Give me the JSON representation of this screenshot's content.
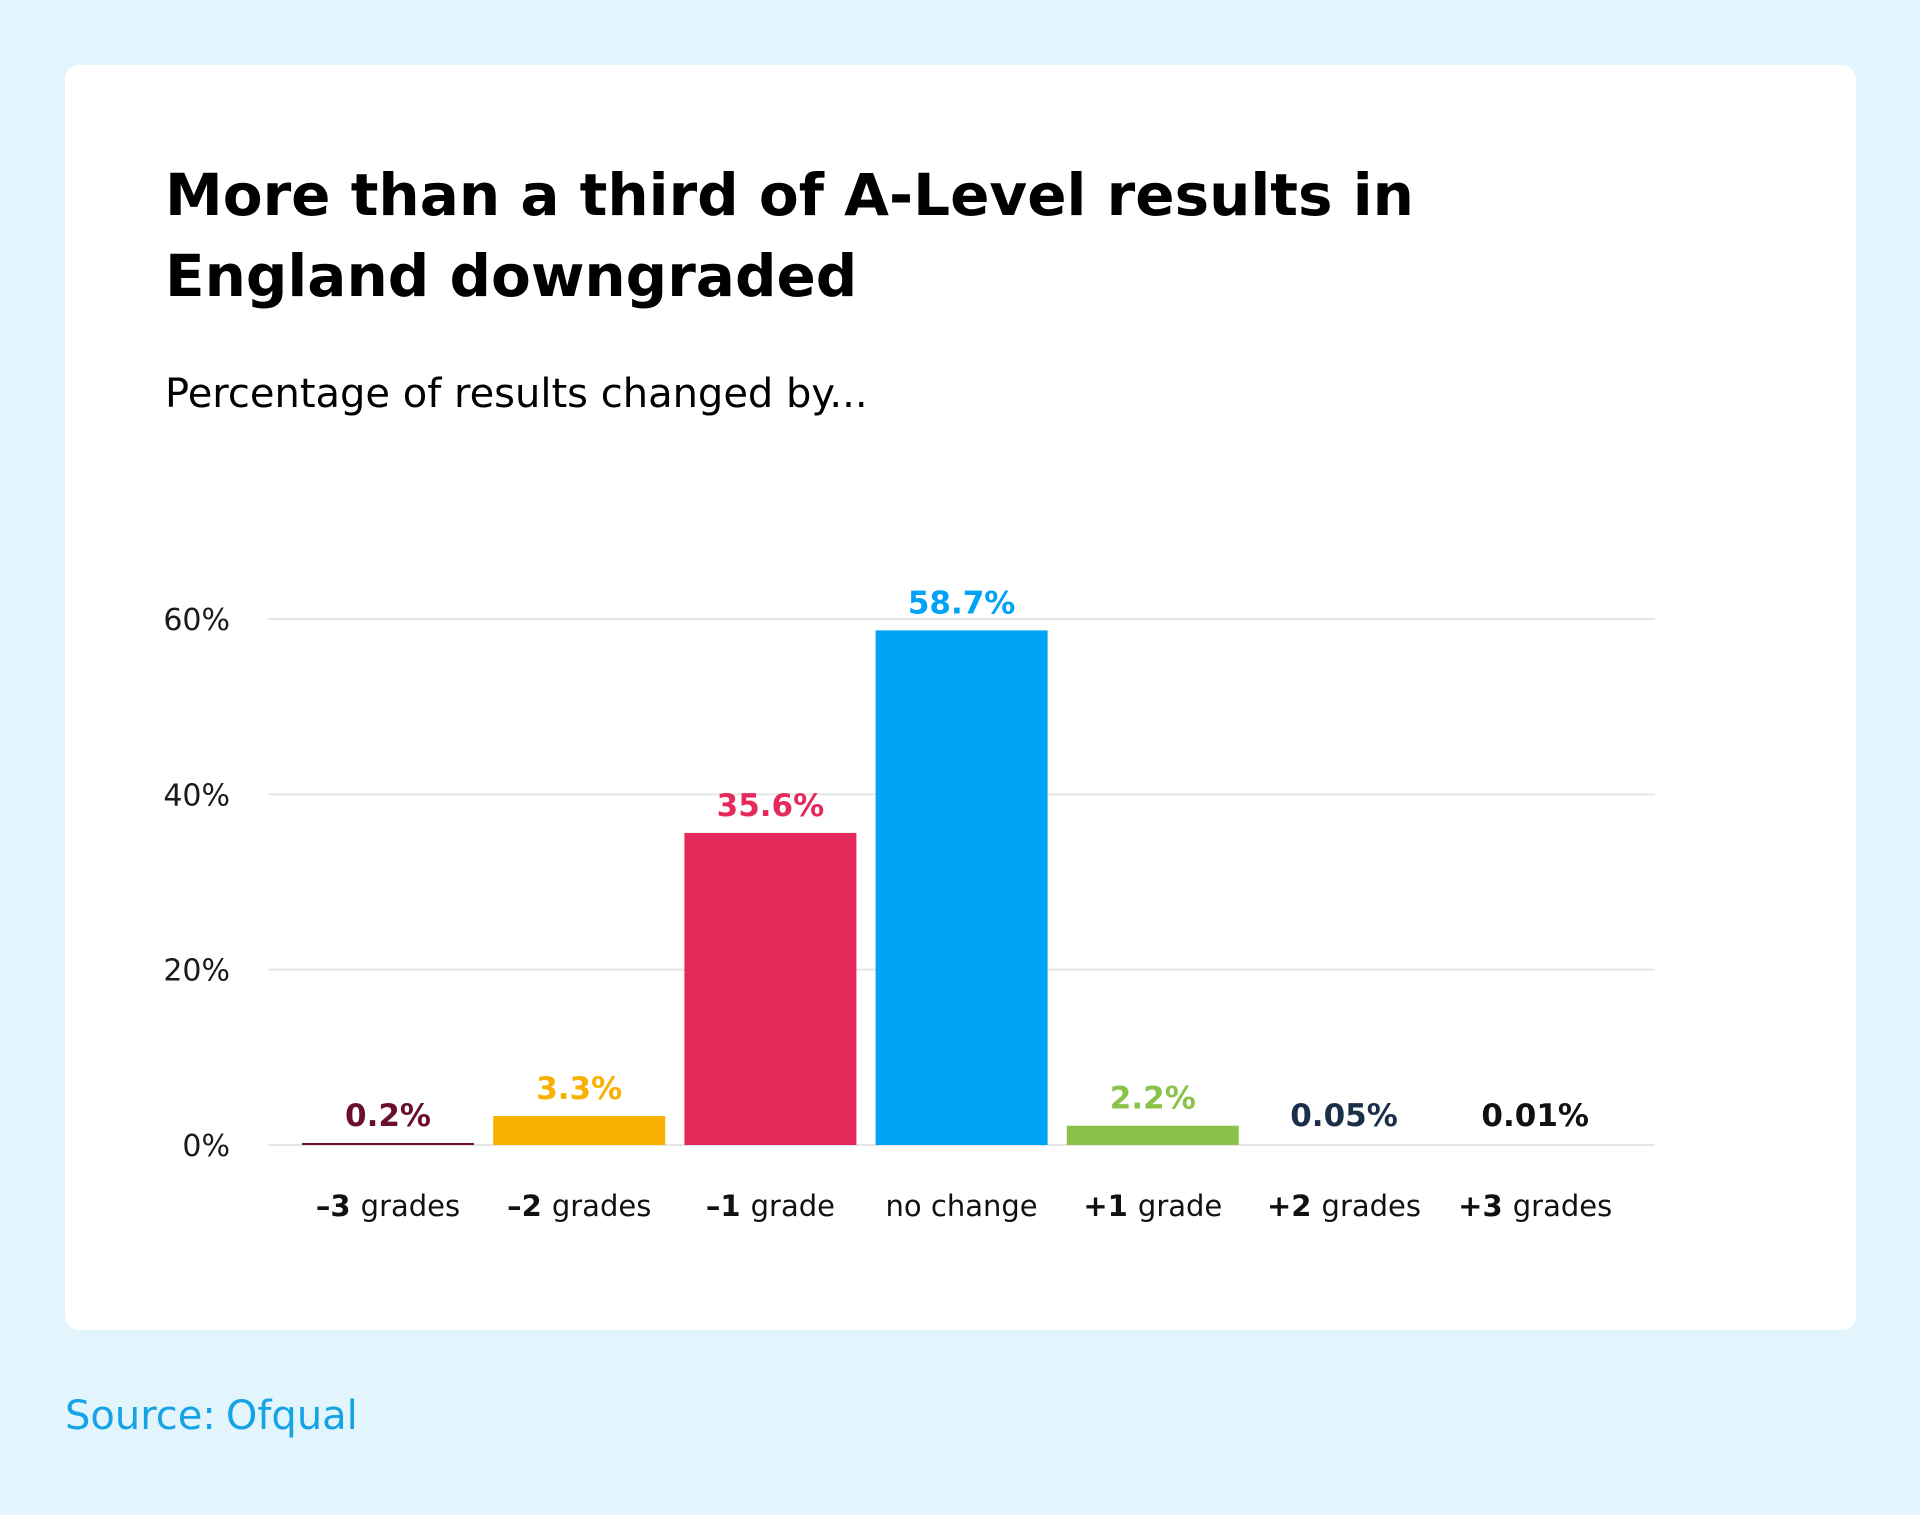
{
  "title": "More than a third of A-Level results in England downgraded",
  "subtitle": "Percentage of results changed by...",
  "source": {
    "label": "Source:",
    "name": "Ofqual"
  },
  "colors": {
    "page_background": "#e2f4fc",
    "card_background": "#ffffff",
    "gridline": "#e6e6e6",
    "source_text": "#15a3e6"
  },
  "chart_data": {
    "type": "bar",
    "title": "More than a third of A-Level results in England downgraded",
    "subtitle": "Percentage of results changed by...",
    "xlabel": "",
    "ylabel": "",
    "ylim": [
      0,
      60
    ],
    "yticks": [
      0,
      20,
      40,
      60
    ],
    "ytick_labels": [
      "0%",
      "20%",
      "40%",
      "60%"
    ],
    "grid": true,
    "categories": [
      {
        "prefix": "-3",
        "suffix": "grades"
      },
      {
        "prefix": "-2",
        "suffix": "grades"
      },
      {
        "prefix": "-1",
        "suffix": "grade"
      },
      {
        "prefix": "",
        "suffix": "no change"
      },
      {
        "prefix": "+1",
        "suffix": "grade"
      },
      {
        "prefix": "+2",
        "suffix": "grades"
      },
      {
        "prefix": "+3",
        "suffix": "grades"
      }
    ],
    "values": [
      0.2,
      3.3,
      35.6,
      58.7,
      2.2,
      0.05,
      0.01
    ],
    "value_labels": [
      "0.2%",
      "3.3%",
      "35.6%",
      "58.7%",
      "2.2%",
      "0.05%",
      "0.01%"
    ],
    "bar_colors": [
      "#6b0f2a",
      "#f8b100",
      "#e52a5b",
      "#00a3f5",
      "#8bc34a",
      "#1b2f49",
      "#111111"
    ]
  }
}
